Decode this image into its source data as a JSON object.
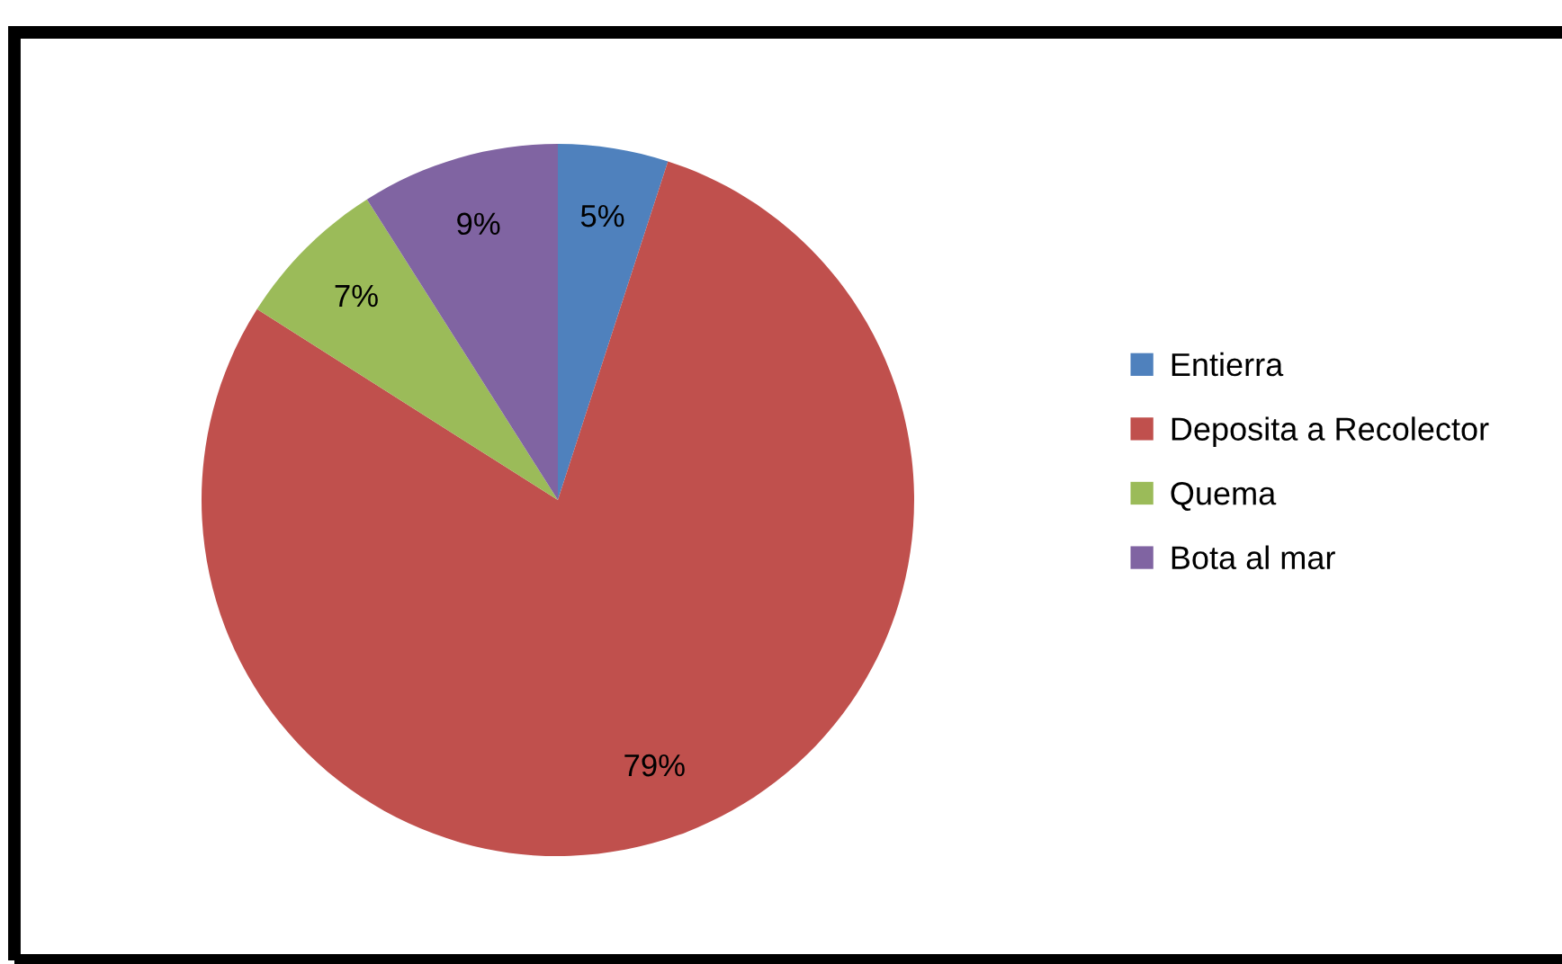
{
  "chart_data": {
    "type": "pie",
    "categories": [
      "Entierra",
      "Deposita a Recolector",
      "Quema",
      "Bota al mar"
    ],
    "values": [
      5,
      79,
      7,
      9
    ],
    "colors": [
      "#4f81bd",
      "#c0504d",
      "#9bbb59",
      "#8064a2"
    ],
    "value_labels": [
      "5%",
      "79%",
      "7%",
      "9%"
    ],
    "legend": "right"
  }
}
